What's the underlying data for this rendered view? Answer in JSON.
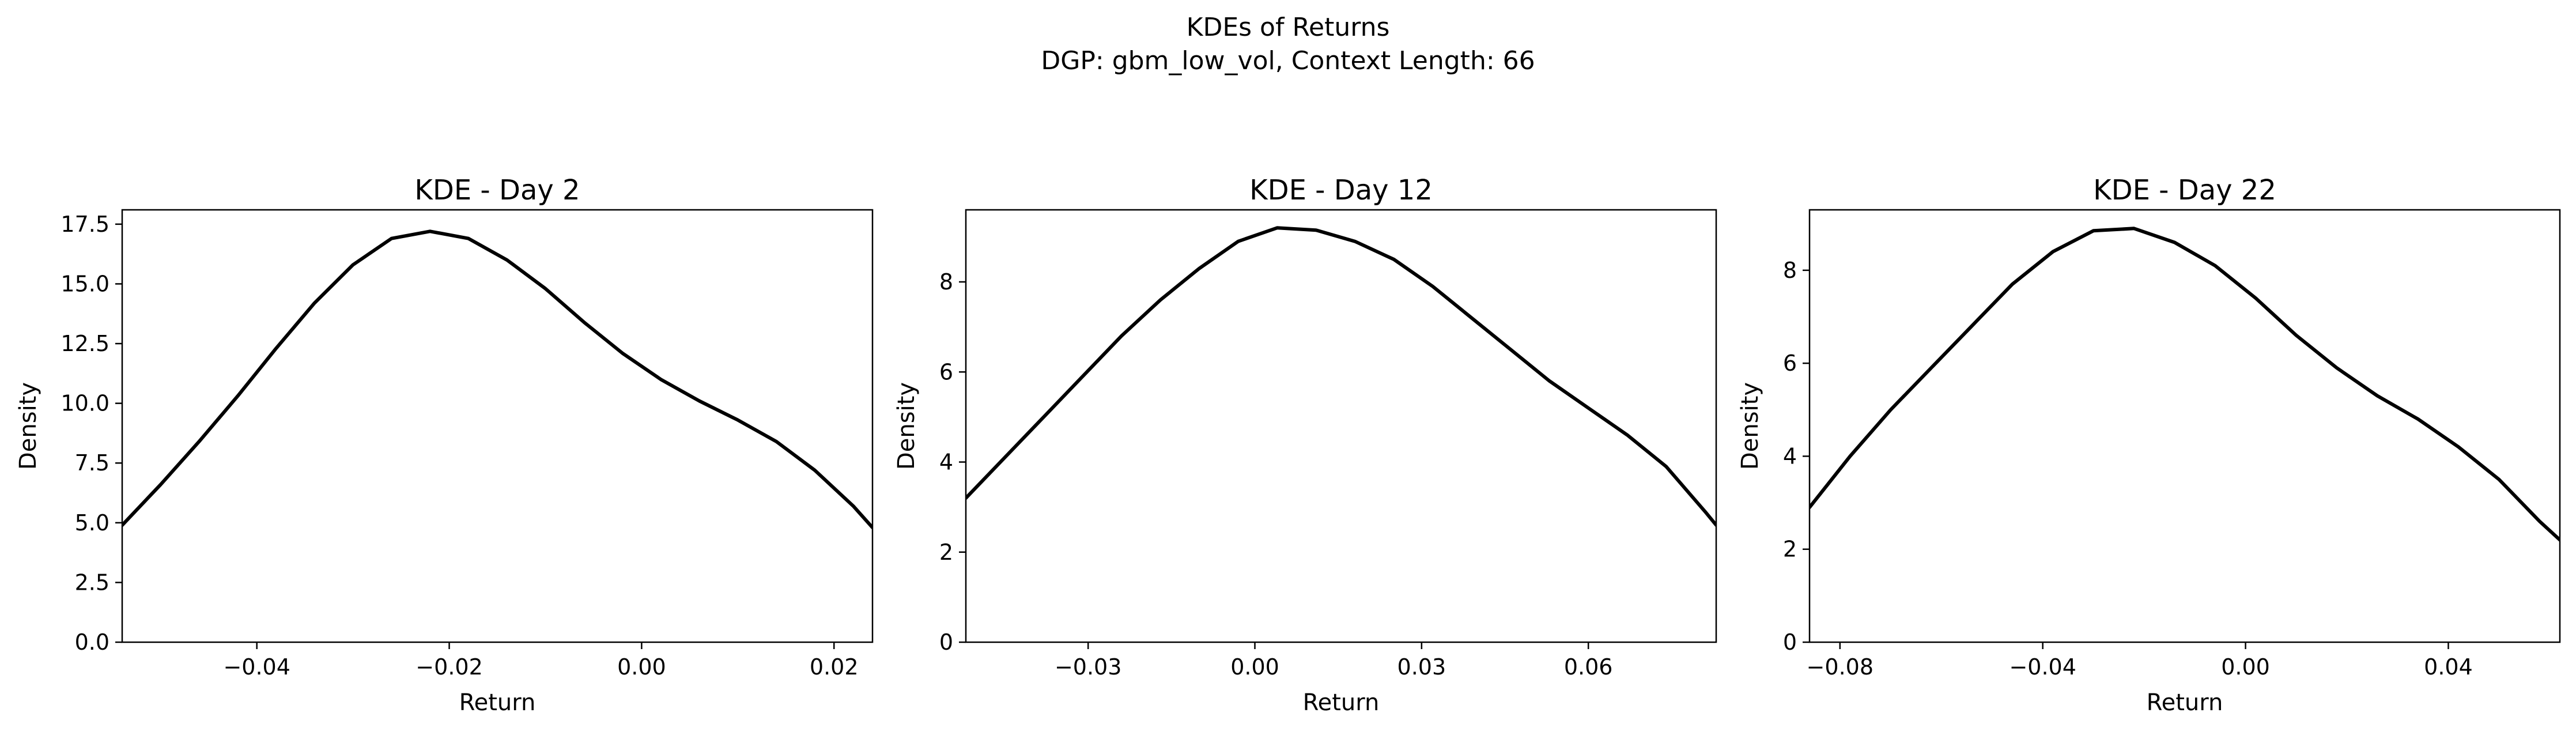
{
  "suptitle": {
    "line1": "KDEs of Returns",
    "line2": "DGP: gbm_low_vol, Context Length: 66"
  },
  "chart_data": [
    {
      "type": "line",
      "title": "KDE - Day 2",
      "xlabel": "Return",
      "ylabel": "Density",
      "xlim": [
        -0.054,
        0.024
      ],
      "ylim": [
        0,
        18.1
      ],
      "grid": false,
      "xticks": [
        -0.04,
        -0.02,
        0.0,
        0.02
      ],
      "xtick_labels": [
        "−0.04",
        "−0.02",
        "0.00",
        "0.02"
      ],
      "yticks": [
        0,
        2.5,
        5,
        7.5,
        10,
        12.5,
        15,
        17.5
      ],
      "ytick_labels": [
        "0.0",
        "2.5",
        "5.0",
        "7.5",
        "10.0",
        "12.5",
        "15.0",
        "17.5"
      ],
      "series": [
        {
          "color": "#000000",
          "x": [
            -0.054,
            -0.05,
            -0.046,
            -0.042,
            -0.038,
            -0.034,
            -0.03,
            -0.026,
            -0.022,
            -0.018,
            -0.014,
            -0.01,
            -0.006,
            -0.002,
            0.002,
            0.006,
            0.01,
            0.014,
            0.018,
            0.022,
            0.024
          ],
          "y": [
            4.9,
            6.6,
            8.4,
            10.3,
            12.3,
            14.2,
            15.8,
            16.9,
            17.2,
            16.9,
            16.0,
            14.8,
            13.4,
            12.1,
            11.0,
            10.1,
            9.3,
            8.4,
            7.2,
            5.7,
            4.8
          ]
        }
      ]
    },
    {
      "type": "line",
      "title": "KDE - Day 12",
      "xlabel": "Return",
      "ylabel": "Density",
      "xlim": [
        -0.052,
        0.083
      ],
      "ylim": [
        0,
        9.6
      ],
      "grid": false,
      "xticks": [
        -0.03,
        0.0,
        0.03,
        0.06
      ],
      "xtick_labels": [
        "−0.03",
        "0.00",
        "0.03",
        "0.06"
      ],
      "yticks": [
        0,
        2,
        4,
        6,
        8
      ],
      "ytick_labels": [
        "0",
        "2",
        "4",
        "6",
        "8"
      ],
      "series": [
        {
          "color": "#000000",
          "x": [
            -0.052,
            -0.045,
            -0.038,
            -0.031,
            -0.024,
            -0.017,
            -0.01,
            -0.003,
            0.004,
            0.011,
            0.018,
            0.025,
            0.032,
            0.039,
            0.046,
            0.053,
            0.06,
            0.067,
            0.074,
            0.081,
            0.083
          ],
          "y": [
            3.2,
            4.1,
            5.0,
            5.9,
            6.8,
            7.6,
            8.3,
            8.9,
            9.2,
            9.15,
            8.9,
            8.5,
            7.9,
            7.2,
            6.5,
            5.8,
            5.2,
            4.6,
            3.9,
            2.9,
            2.6
          ]
        }
      ]
    },
    {
      "type": "line",
      "title": "KDE - Day 22",
      "xlabel": "Return",
      "ylabel": "Density",
      "xlim": [
        -0.086,
        0.062
      ],
      "ylim": [
        0,
        9.3
      ],
      "grid": false,
      "xticks": [
        -0.08,
        -0.04,
        0.0,
        0.04
      ],
      "xtick_labels": [
        "−0.08",
        "−0.04",
        "0.00",
        "0.04"
      ],
      "yticks": [
        0,
        2,
        4,
        6,
        8
      ],
      "ytick_labels": [
        "0",
        "2",
        "4",
        "6",
        "8"
      ],
      "series": [
        {
          "color": "#000000",
          "x": [
            -0.086,
            -0.078,
            -0.07,
            -0.062,
            -0.054,
            -0.046,
            -0.038,
            -0.03,
            -0.022,
            -0.014,
            -0.006,
            0.002,
            0.01,
            0.018,
            0.026,
            0.034,
            0.042,
            0.05,
            0.058,
            0.062
          ],
          "y": [
            2.9,
            4.0,
            5.0,
            5.9,
            6.8,
            7.7,
            8.4,
            8.85,
            8.9,
            8.6,
            8.1,
            7.4,
            6.6,
            5.9,
            5.3,
            4.8,
            4.2,
            3.5,
            2.6,
            2.2
          ]
        }
      ]
    }
  ]
}
